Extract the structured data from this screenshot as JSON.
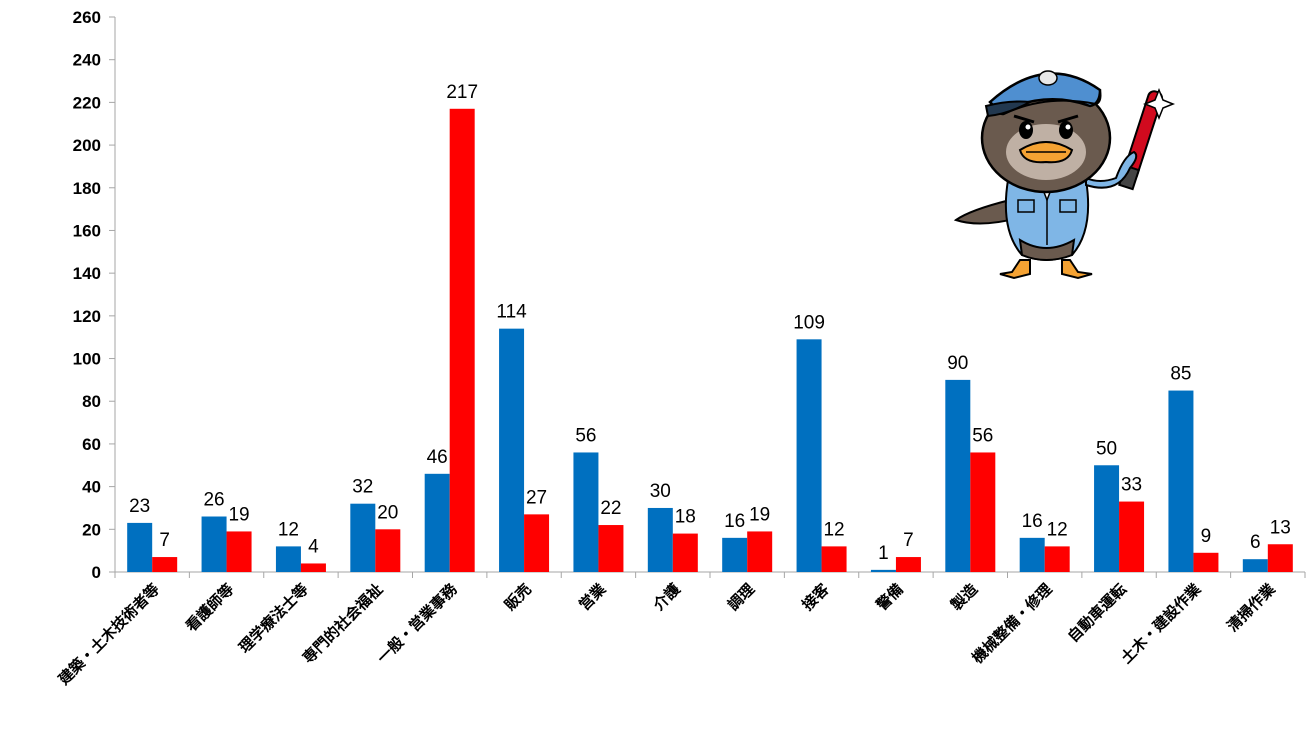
{
  "chart_data": {
    "type": "bar",
    "categories": [
      "建築・土木技術者等",
      "看護師等",
      "理学療法士等",
      "専門的社会福祉",
      "一般・営業事務",
      "販売",
      "営業",
      "介護",
      "調理",
      "接客",
      "警備",
      "製造",
      "機械整備・修理",
      "自動車運転",
      "土木・建設作業",
      "清掃作業"
    ],
    "series": [
      {
        "color": "#0070c0",
        "values": [
          23,
          26,
          12,
          32,
          46,
          114,
          56,
          30,
          16,
          109,
          1,
          90,
          16,
          50,
          85,
          6
        ]
      },
      {
        "color": "#ff0000",
        "values": [
          7,
          19,
          4,
          20,
          217,
          27,
          22,
          18,
          19,
          12,
          7,
          56,
          12,
          33,
          9,
          13
        ]
      }
    ],
    "ylim": [
      0,
      260
    ],
    "yticks": [
      0,
      20,
      40,
      60,
      80,
      100,
      120,
      140,
      160,
      180,
      200,
      220,
      240,
      260
    ],
    "grid": false,
    "legend": "none",
    "mascot": "duck-police-mascot"
  }
}
